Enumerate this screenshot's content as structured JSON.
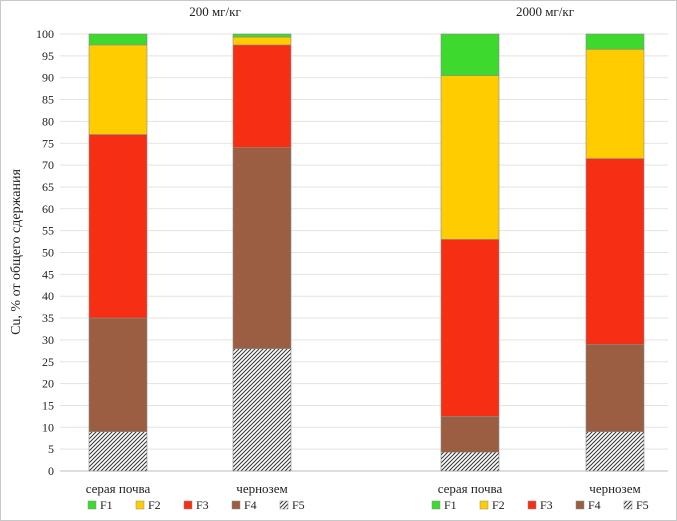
{
  "chart_data": {
    "type": "bar",
    "stacked": true,
    "ylabel": "Cu, % от общего сдержания",
    "ylim": [
      0,
      100
    ],
    "ytick_step": 5,
    "grid": true,
    "groups": [
      {
        "title": "200 мг/кг",
        "categories": [
          "серая почва",
          "чернозем"
        ],
        "series": [
          {
            "name": "F5",
            "values": [
              9,
              28
            ]
          },
          {
            "name": "F4",
            "values": [
              26,
              46
            ]
          },
          {
            "name": "F3",
            "values": [
              42,
              23.5
            ]
          },
          {
            "name": "F2",
            "values": [
              20.5,
              1.8
            ]
          },
          {
            "name": "F1",
            "values": [
              2.5,
              0.7
            ]
          }
        ]
      },
      {
        "title": "2000 мг/кг",
        "categories": [
          "серая почва",
          "чернозем"
        ],
        "series": [
          {
            "name": "F5",
            "values": [
              4.3,
              9
            ]
          },
          {
            "name": "F4",
            "values": [
              8.2,
              20
            ]
          },
          {
            "name": "F3",
            "values": [
              40.5,
              42.5
            ]
          },
          {
            "name": "F2",
            "values": [
              37.5,
              25
            ]
          },
          {
            "name": "F1",
            "values": [
              9.5,
              3.5
            ]
          }
        ]
      }
    ],
    "colors": {
      "F1": "#3dd92e",
      "F2": "#ffcc00",
      "F3": "#f52e14",
      "F4": "#9b5e42",
      "F5": "hatch"
    },
    "legend": [
      "F1",
      "F2",
      "F3",
      "F4",
      "F5"
    ],
    "legend_position": "bottom"
  }
}
